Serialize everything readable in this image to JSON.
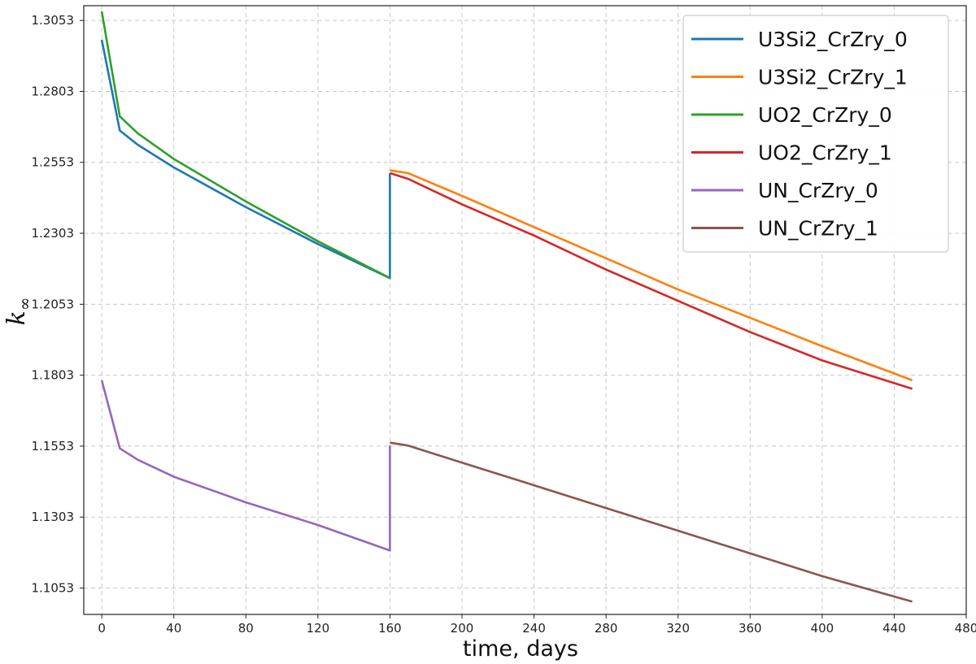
{
  "chart_data": {
    "type": "line",
    "xlabel": "time, days",
    "ylabel": "k",
    "ylabel_subscript": "∞",
    "xlim": [
      -10,
      480
    ],
    "ylim": [
      1.096,
      1.3105
    ],
    "xticks": [
      0,
      40,
      80,
      120,
      160,
      200,
      240,
      280,
      320,
      360,
      400,
      440,
      480
    ],
    "yticks": [
      1.1053,
      1.1303,
      1.1553,
      1.1803,
      1.2053,
      1.2303,
      1.2553,
      1.2803,
      1.3053
    ],
    "grid": true,
    "legend_position": "top-right",
    "series": [
      {
        "name": "U3Si2_CrZry_0",
        "color": "#1f77b4",
        "x": [
          0,
          10,
          20,
          40,
          80,
          120,
          160,
          160
        ],
        "y": [
          1.2985,
          1.2665,
          1.2615,
          1.2535,
          1.2395,
          1.2265,
          1.2145,
          1.2515
        ]
      },
      {
        "name": "U3Si2_CrZry_1",
        "color": "#ff7f0e",
        "x": [
          160,
          170,
          200,
          240,
          280,
          320,
          360,
          400,
          450
        ],
        "y": [
          1.2525,
          1.2515,
          1.2435,
          1.2325,
          1.2215,
          1.2105,
          1.2005,
          1.1905,
          1.1785
        ]
      },
      {
        "name": "UO2_CrZry_0",
        "color": "#2ca02c",
        "x": [
          0,
          10,
          20,
          40,
          80,
          120,
          160
        ],
        "y": [
          1.3085,
          1.2715,
          1.2655,
          1.2565,
          1.2415,
          1.2275,
          1.2145
        ]
      },
      {
        "name": "UO2_CrZry_1",
        "color": "#d62728",
        "x": [
          160,
          170,
          200,
          240,
          280,
          320,
          360,
          400,
          450
        ],
        "y": [
          1.2515,
          1.2495,
          1.2405,
          1.2295,
          1.2175,
          1.2065,
          1.1955,
          1.1855,
          1.1755
        ]
      },
      {
        "name": "UN_CrZry_0",
        "color": "#9467bd",
        "x": [
          0,
          10,
          20,
          40,
          80,
          120,
          160,
          160
        ],
        "y": [
          1.1785,
          1.1545,
          1.1505,
          1.1445,
          1.1355,
          1.1275,
          1.1185,
          1.1555
        ]
      },
      {
        "name": "UN_CrZry_1",
        "color": "#8c564b",
        "x": [
          160,
          170,
          200,
          240,
          280,
          320,
          360,
          400,
          450
        ],
        "y": [
          1.1565,
          1.1555,
          1.1495,
          1.1415,
          1.1335,
          1.1255,
          1.1175,
          1.1095,
          1.1005
        ]
      }
    ]
  }
}
